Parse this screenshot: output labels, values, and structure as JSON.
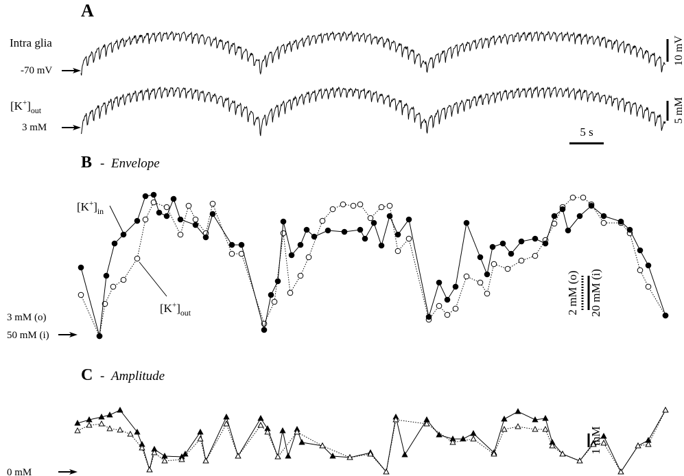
{
  "panel_a": {
    "label": "A",
    "traces": [
      {
        "label": "Intra glia",
        "baseline": "-70 mV",
        "scale": "10 mV"
      },
      {
        "label": {
          "open": "[K",
          "sup": "+",
          "close": "]",
          "sub": "out"
        },
        "baseline": "3 mM",
        "scale": "5 mM"
      }
    ],
    "time_bar": {
      "label": "5 s",
      "value": 5
    }
  },
  "chart_data": [
    {
      "type": "line",
      "label": "B",
      "separator": "-",
      "title": "Envelope",
      "baselines": [
        {
          "label": "3 mM (o)",
          "value": 3
        },
        {
          "label": "50 mM (i)",
          "value": 50
        }
      ],
      "scale_bars": [
        {
          "label": "2 mM (o)",
          "value": 2
        },
        {
          "label": "20 mM (i)",
          "value": 20
        }
      ],
      "series": [
        {
          "label": {
            "open": "[K",
            "sup": "+",
            "close": "]",
            "sub": "out"
          },
          "marker": "open-circle",
          "color": "#000",
          "x": [
            0.5,
            3.2,
            4.0,
            5.2,
            6.7,
            8.7,
            9.9,
            11.1,
            13.0,
            15.0,
            16.2,
            17.2,
            18.7,
            19.7,
            22.5,
            23.9,
            27.2,
            28.7,
            30.0,
            31.0,
            32.5,
            33.7,
            35.7,
            37.2,
            38.7,
            40.2,
            41.2,
            42.7,
            44.3,
            45.5,
            46.7,
            48.3,
            51.2,
            52.7,
            53.9,
            55.1,
            56.7,
            58.7,
            59.7,
            60.7,
            62.7,
            64.7,
            66.7,
            68.2,
            69.5,
            70.7,
            72.2,
            73.7,
            74.9,
            76.7,
            79.2,
            80.5,
            82.0,
            83.2,
            85.7
          ],
          "values": [
            5.32,
            2.92,
            4.8,
            5.8,
            6.2,
            7.44,
            9.72,
            10.72,
            10.44,
            8.84,
            10.52,
            9.72,
            8.92,
            10.64,
            7.72,
            7.72,
            3.64,
            4.92,
            8.92,
            5.44,
            6.44,
            7.52,
            9.64,
            10.32,
            10.6,
            10.52,
            10.6,
            9.8,
            10.44,
            10.52,
            7.88,
            8.6,
            3.88,
            4.68,
            4.16,
            4.52,
            6.4,
            6.04,
            5.4,
            7.12,
            6.84,
            7.32,
            7.6,
            8.52,
            9.48,
            10.44,
            11,
            11,
            10.6,
            9.52,
            9.52,
            8.92,
            6.76,
            5.8,
            4.12
          ]
        },
        {
          "label": {
            "open": "[K",
            "sup": "+",
            "close": "]",
            "sub": "in"
          },
          "marker": "filled-circle",
          "color": "#000",
          "x": [
            0.5,
            3.2,
            4.2,
            5.4,
            6.7,
            8.7,
            9.9,
            11.1,
            11.9,
            13.0,
            14.0,
            15.0,
            17.2,
            18.7,
            19.7,
            22.5,
            23.9,
            27.2,
            28.2,
            29.2,
            30.0,
            31.2,
            32.5,
            33.4,
            34.5,
            36.5,
            38.9,
            41.2,
            41.9,
            43.2,
            44.3,
            45.5,
            46.7,
            48.3,
            51.2,
            52.7,
            53.9,
            55.1,
            56.7,
            58.7,
            59.7,
            60.5,
            62.0,
            63.2,
            64.7,
            66.7,
            68.2,
            69.5,
            70.7,
            71.5,
            73.2,
            74.9,
            76.7,
            79.2,
            80.5,
            82.0,
            83.2,
            85.7
          ],
          "values": [
            89.2,
            49.2,
            84.4,
            103.2,
            108.4,
            116.4,
            130.8,
            131.6,
            121.2,
            119.2,
            129.2,
            117.2,
            114,
            106.8,
            120.4,
            102.4,
            102.4,
            52.8,
            73.2,
            81.2,
            116,
            96.4,
            102.4,
            111.2,
            107.2,
            110.8,
            110,
            111.2,
            106,
            115.2,
            102,
            119.2,
            108.4,
            117.2,
            60.4,
            80.4,
            70.4,
            78,
            115.2,
            95.2,
            85.2,
            101.2,
            103.2,
            97.2,
            104.4,
            106,
            103.2,
            119.2,
            123.2,
            110.8,
            119.2,
            125.2,
            119.2,
            116,
            111.2,
            99.2,
            90.4,
            61.2
          ]
        }
      ]
    },
    {
      "type": "line",
      "label": "C",
      "separator": "-",
      "title": "Amplitude",
      "baselines": [
        {
          "label": "0 mM",
          "value": 0
        }
      ],
      "scale_bars": [
        {
          "label": "1 mM",
          "value": 1
        }
      ],
      "series": [
        {
          "marker": "filled-triangle",
          "color": "#000",
          "x": [
            0,
            1.7,
            3.5,
            4.7,
            6.2,
            8.7,
            9.4,
            10.5,
            11.2,
            12.7,
            15.2,
            15.7,
            17.9,
            18.7,
            21.7,
            23.4,
            26.7,
            27.7,
            29.2,
            29.9,
            30.7,
            32.0,
            32.7,
            35.7,
            37.2,
            39.7,
            42.7,
            45.0,
            46.4,
            47.7,
            50.9,
            52.7,
            54.7,
            56.2,
            57.7,
            60.7,
            62.2,
            64.2,
            66.7,
            68.2,
            69.2,
            70.7,
            73.2,
            75.2,
            76.7,
            79.2,
            81.7,
            83.2,
            85.7
          ],
          "values": [
            3.55,
            3.8,
            4.0,
            4.15,
            4.5,
            2.9,
            2.0,
            0.15,
            1.65,
            1.15,
            1.1,
            1.3,
            2.9,
            0.8,
            4.0,
            1.15,
            3.9,
            3.15,
            1.1,
            3.0,
            1.15,
            3.1,
            2.15,
            1.9,
            1.15,
            1.05,
            1.4,
            0,
            4.0,
            1.25,
            3.8,
            2.7,
            2.4,
            2.4,
            2.8,
            1.4,
            3.85,
            4.4,
            3.8,
            3.9,
            2.15,
            1.3,
            0.8,
            2.1,
            2.6,
            0,
            1.9,
            2.3,
            4.5
          ]
        },
        {
          "marker": "open-triangle",
          "color": "#000",
          "x": [
            0,
            1.7,
            3.5,
            4.7,
            6.2,
            7.7,
            9.4,
            10.5,
            11.2,
            12.7,
            15.2,
            17.9,
            18.7,
            21.7,
            23.4,
            26.7,
            27.7,
            29.2,
            32.0,
            35.7,
            39.7,
            42.7,
            45.0,
            46.4,
            50.9,
            54.7,
            57.7,
            60.7,
            62.2,
            64.2,
            66.7,
            68.2,
            69.2,
            70.7,
            73.2,
            75.2,
            76.7,
            79.2,
            81.7,
            83.2,
            85.7
          ],
          "values": [
            3.0,
            3.4,
            3.5,
            3.15,
            3.05,
            2.75,
            1.75,
            0.15,
            1.4,
            0.8,
            0.9,
            2.4,
            0.8,
            3.5,
            1.15,
            3.4,
            2.9,
            1.1,
            2.9,
            1.9,
            1.05,
            1.3,
            0,
            3.8,
            3.5,
            2.15,
            2.4,
            1.3,
            3.1,
            3.3,
            3.1,
            3.1,
            1.9,
            1.3,
            0.8,
            2.0,
            2.1,
            0,
            1.9,
            2.0,
            4.5
          ]
        }
      ]
    }
  ]
}
